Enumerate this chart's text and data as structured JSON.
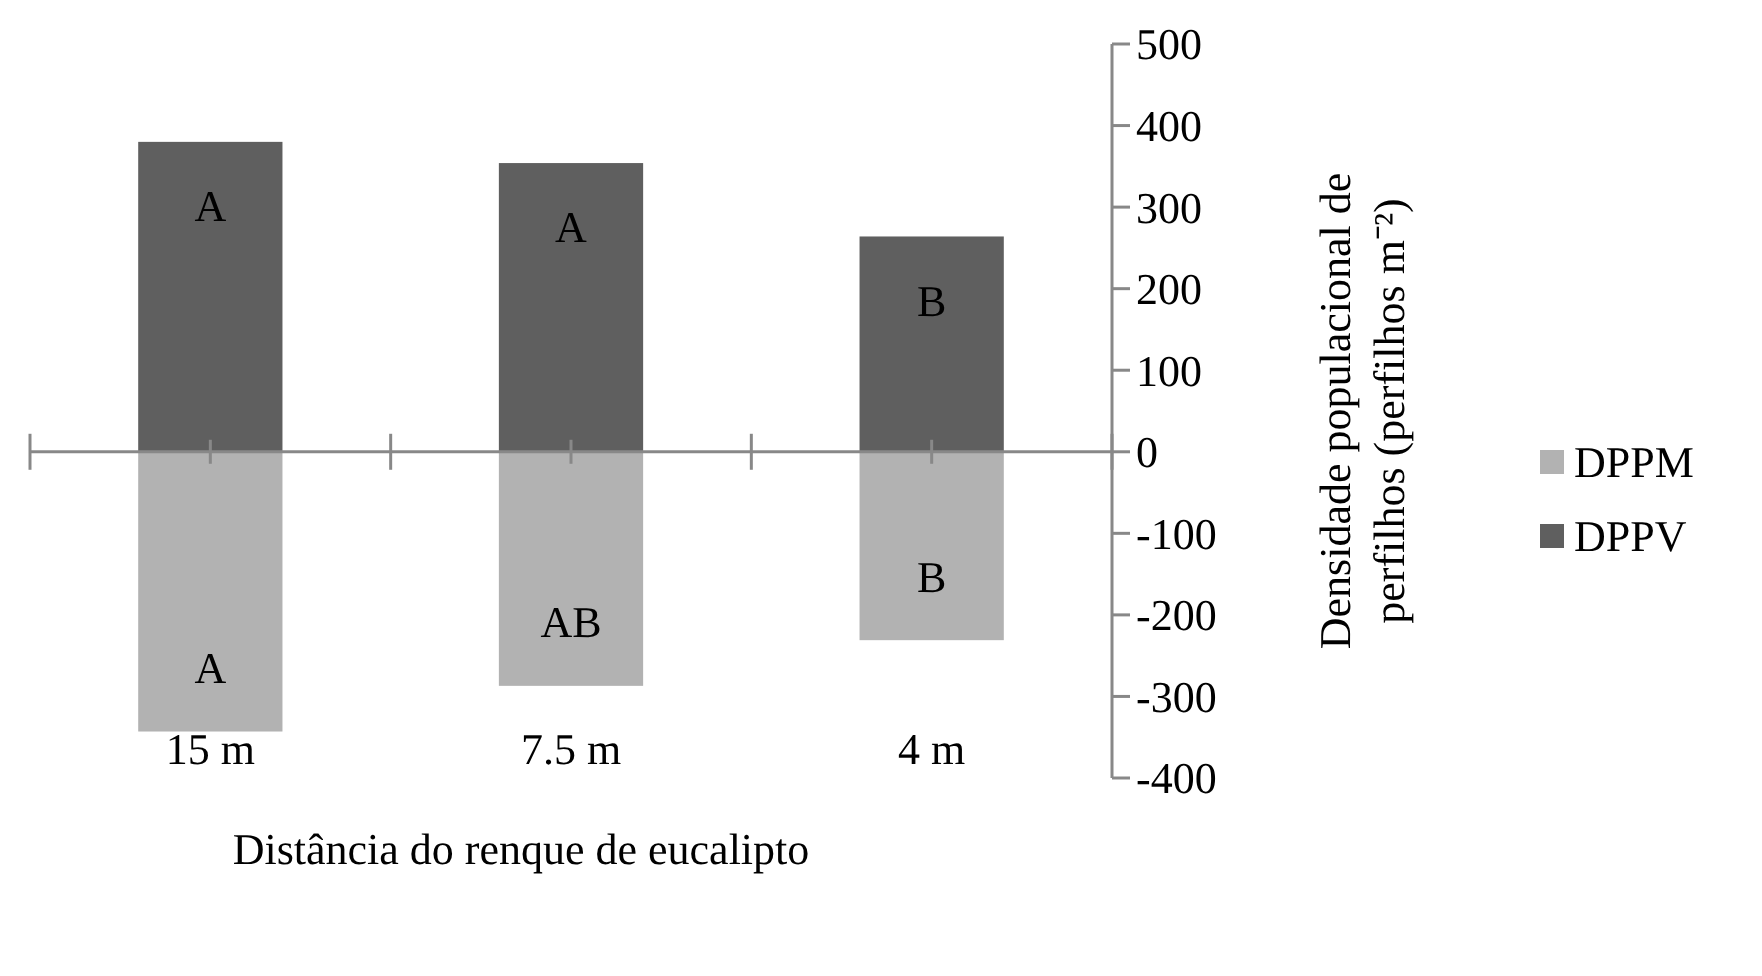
{
  "chart_data": {
    "type": "bar",
    "stacked": true,
    "xlabel": "Distância do renque de eucalipto",
    "ylabel": "Densidade populacional de perfilhos (perfilhos m⁻²)",
    "categories": [
      "15 m",
      "7.5 m",
      "4 m"
    ],
    "series": [
      {
        "name": "DPPM",
        "color": "#b2b2b2",
        "values": [
          -343,
          -287,
          -231
        ],
        "value_labels": [
          "A",
          "AB",
          "B"
        ]
      },
      {
        "name": "DPPV",
        "color": "#5f5f5f",
        "values": [
          380,
          354,
          264
        ],
        "value_labels": [
          "A",
          "A",
          "B"
        ]
      }
    ],
    "ylim": [
      -400,
      500
    ],
    "yticks": [
      -400,
      -300,
      -200,
      -100,
      0,
      100,
      200,
      300,
      400,
      500
    ],
    "legend": "right"
  }
}
